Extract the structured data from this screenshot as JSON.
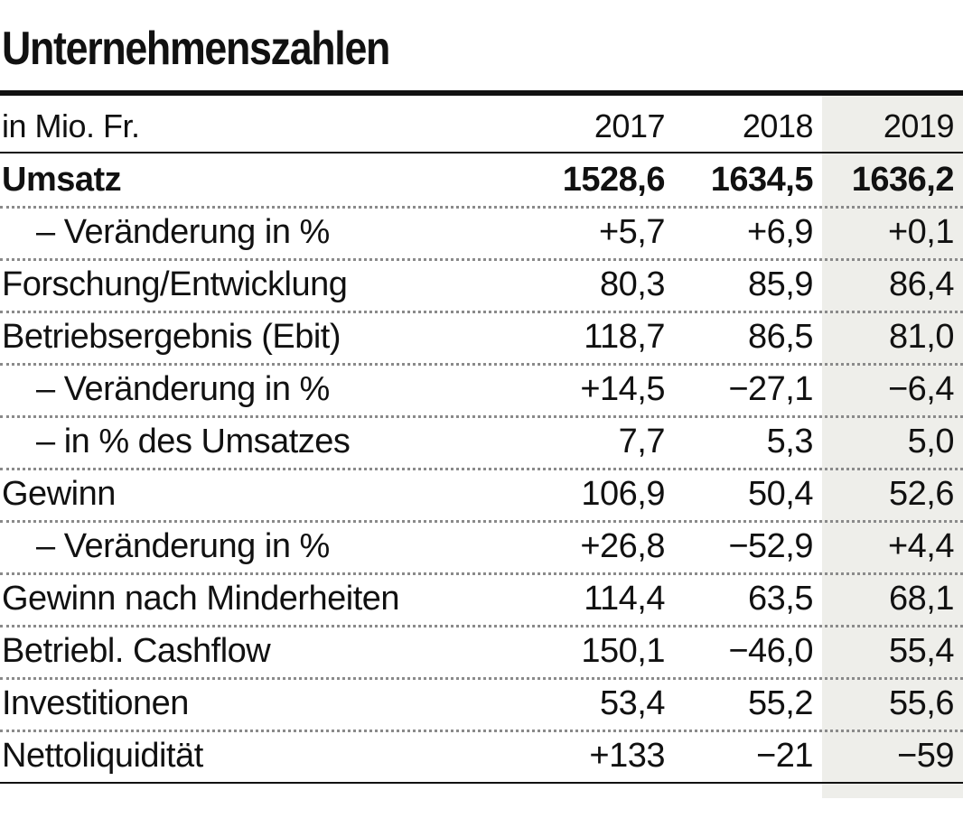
{
  "title": "Unternehmenszahlen",
  "header": {
    "unit": "in Mio. Fr.",
    "years": [
      "2017",
      "2018",
      "2019"
    ]
  },
  "rows": [
    {
      "label": "Umsatz",
      "values": [
        "1528,6",
        "1634,5",
        "1636,2"
      ],
      "bold": true
    },
    {
      "label": "– Veränderung in %",
      "values": [
        "+5,7",
        "+6,9",
        "+0,1"
      ],
      "indent": true
    },
    {
      "label": "Forschung/Entwicklung",
      "values": [
        "80,3",
        "85,9",
        "86,4"
      ]
    },
    {
      "label": "Betriebsergebnis (Ebit)",
      "values": [
        "118,7",
        "86,5",
        "81,0"
      ]
    },
    {
      "label": "– Veränderung in %",
      "values": [
        "+14,5",
        "−27,1",
        "−6,4"
      ],
      "indent": true
    },
    {
      "label": "– in % des Umsatzes",
      "values": [
        "7,7",
        "5,3",
        "5,0"
      ],
      "indent": true
    },
    {
      "label": "Gewinn",
      "values": [
        "106,9",
        "50,4",
        "52,6"
      ]
    },
    {
      "label": "– Veränderung in %",
      "values": [
        "+26,8",
        "−52,9",
        "+4,4"
      ],
      "indent": true
    },
    {
      "label": "Gewinn nach Minderheiten",
      "values": [
        "114,4",
        "63,5",
        "68,1"
      ]
    },
    {
      "label": "Betriebl. Cashflow",
      "values": [
        "150,1",
        "−46,0",
        "55,4"
      ]
    },
    {
      "label": "Investitionen",
      "values": [
        "53,4",
        "55,2",
        "55,6"
      ]
    },
    {
      "label": "Nettoliquidität",
      "values": [
        "+133",
        "−21",
        "−59"
      ]
    }
  ],
  "colors": {
    "text": "#111111",
    "highlight_column": "#eeeeea",
    "dotted_rule": "#8a8a8a"
  }
}
